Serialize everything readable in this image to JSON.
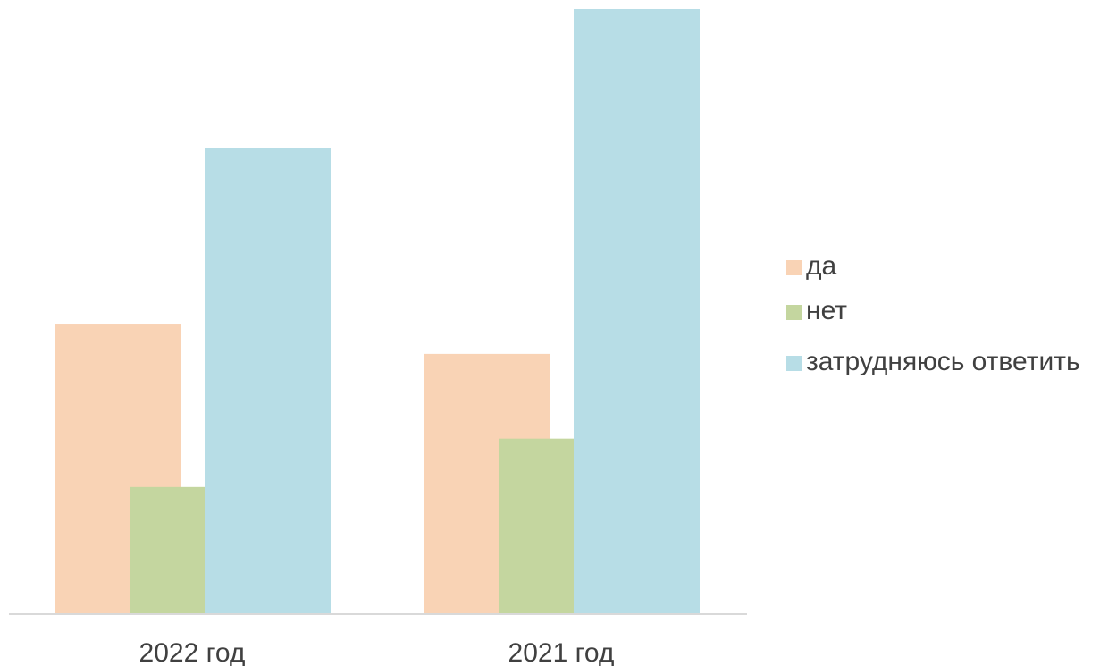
{
  "chart_data": {
    "type": "bar",
    "categories": [
      "2022 год",
      "2021 год"
    ],
    "series": [
      {
        "name": "да",
        "values": [
          48,
          43
        ],
        "color": "#f9d3b5"
      },
      {
        "name": "нет",
        "values": [
          21,
          29
        ],
        "color": "#c4d69f"
      },
      {
        "name": "затрудняюсь ответить",
        "values": [
          77,
          100
        ],
        "color": "#b7dde6"
      }
    ],
    "ylim": [
      0,
      100
    ],
    "grid": false,
    "legend_position": "right",
    "axis_color": "#d9d9d9"
  }
}
